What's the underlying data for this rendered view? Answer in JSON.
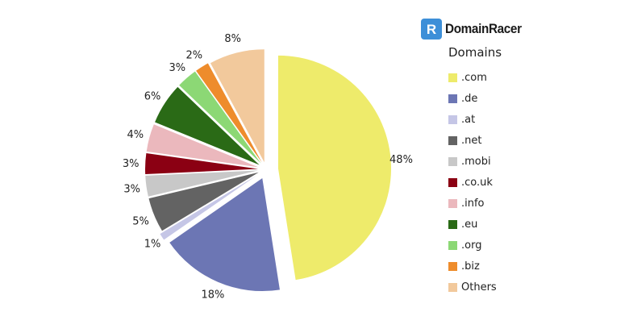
{
  "brand": {
    "name": "DomainRacer",
    "logo_letter": "R",
    "logo_color": "#3d8fd8"
  },
  "chart_data": {
    "type": "pie",
    "title": "",
    "legend_title": "Domains",
    "legend_position": "right",
    "exploded": true,
    "start": "top",
    "direction": "clockwise",
    "categories": [
      ".com",
      ".de",
      ".at",
      ".net",
      ".mobi",
      ".co.uk",
      ".info",
      ".eu",
      ".org",
      ".biz",
      "Others"
    ],
    "values": [
      48,
      18,
      1,
      5,
      3,
      3,
      4,
      6,
      3,
      2,
      8
    ],
    "labels": [
      "48%",
      "18%",
      "1%",
      "5%",
      "3%",
      "3%",
      "4%",
      "6%",
      "3%",
      "2%",
      "8%"
    ],
    "colors": [
      "#eeeb6b",
      "#6c76b4",
      "#c5c6e6",
      "#636363",
      "#c8c8c8",
      "#8b0013",
      "#ebb8bd",
      "#2a6a16",
      "#8cd875",
      "#ee8c2c",
      "#f2c99c"
    ]
  }
}
